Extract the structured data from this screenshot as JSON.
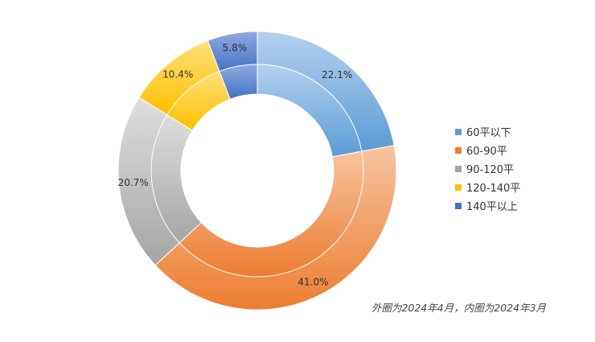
{
  "chart_data": {
    "type": "doughnut",
    "categories": [
      "60平以下",
      "60-90平",
      "90-120平",
      "120-140平",
      "140平以上"
    ],
    "series": [
      {
        "ring": "outer",
        "values": [
          22.1,
          41.0,
          20.7,
          10.4,
          5.8
        ]
      },
      {
        "ring": "inner",
        "values": [
          22.1,
          41.0,
          20.7,
          10.4,
          5.8
        ]
      }
    ],
    "data_labels": [
      "22.1%",
      "41.0%",
      "20.7%",
      "10.4%",
      "5.8%"
    ],
    "colors": [
      "#5b9bd5",
      "#ed7d31",
      "#a5a5a5",
      "#ffc000",
      "#4472c4"
    ],
    "colors_light": [
      "#b4d1ef",
      "#f6c4a0",
      "#dedede",
      "#ffe07a",
      "#91a9e0"
    ],
    "legend_position": "right",
    "note": "外圈为2024年4月，内圈为2024年3月"
  }
}
